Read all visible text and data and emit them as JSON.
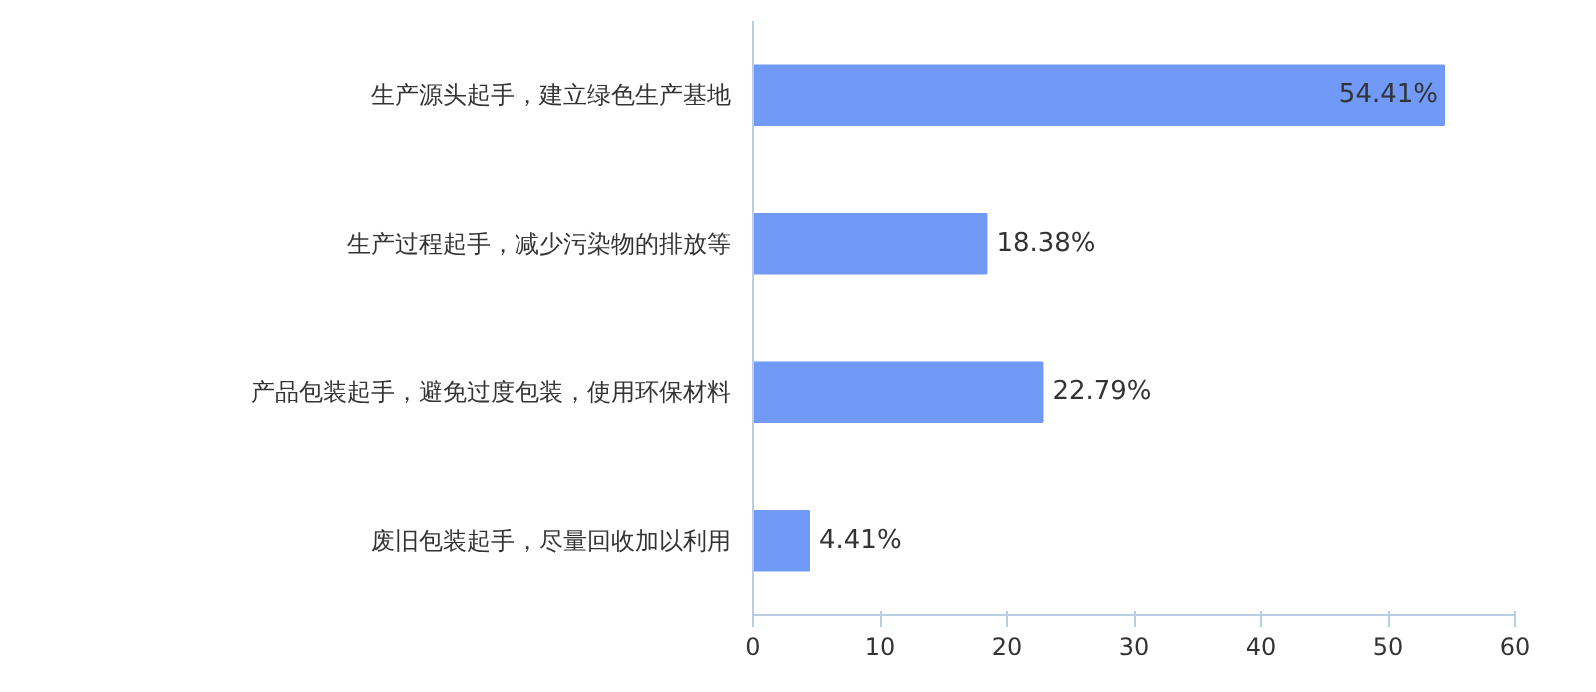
{
  "chart_data": {
    "type": "bar",
    "orientation": "horizontal",
    "categories": [
      "生产源头起手，建立绿色生产基地",
      "生产过程起手，减少污染物的排放等",
      "产品包装起手，避免过度包装，使用环保材料",
      "废旧包装起手，尽量回收加以利用"
    ],
    "values": [
      54.41,
      18.38,
      22.79,
      4.41
    ],
    "value_labels": [
      "54.41%",
      "18.38%",
      "22.79%",
      "4.41%"
    ],
    "color": "#7099f8",
    "xlim": [
      0,
      60
    ],
    "xticks": [
      0,
      10,
      20,
      30,
      40,
      50,
      60
    ],
    "grid": false
  }
}
